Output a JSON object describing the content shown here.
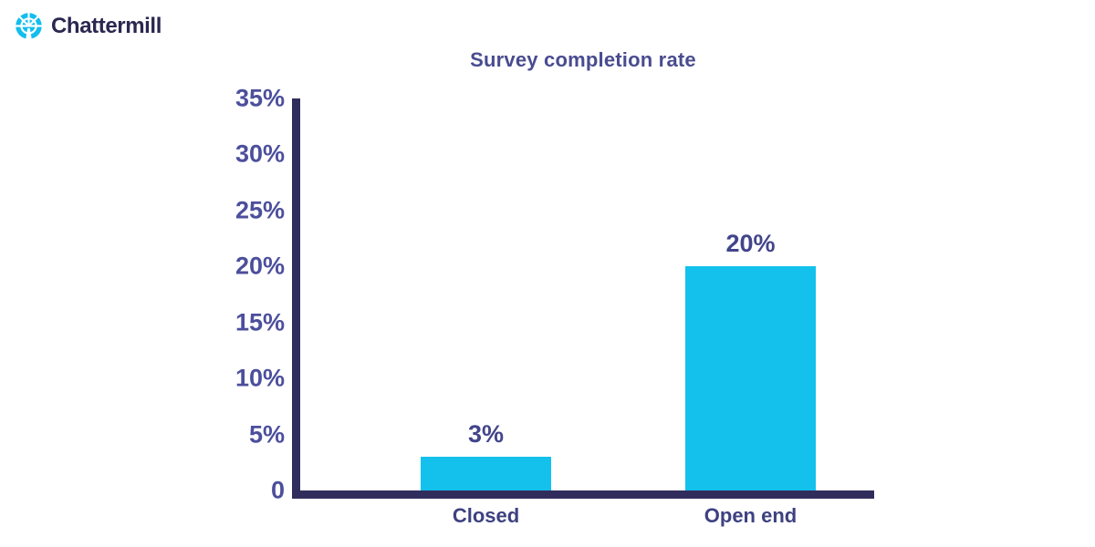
{
  "logo": {
    "text": "Chattermill",
    "icon": "chattermill-mill-wheel-icon",
    "colors": {
      "icon": "#12BEEE",
      "text": "#2A2750"
    }
  },
  "chart_data": {
    "type": "bar",
    "title": "Survey completion rate",
    "categories": [
      "Closed",
      "Open end"
    ],
    "values": [
      3,
      20
    ],
    "value_labels": [
      "3%",
      "20%"
    ],
    "ylim": [
      0,
      35
    ],
    "y_ticks": {
      "values": [
        35,
        30,
        25,
        20,
        15,
        10,
        5,
        0
      ],
      "labels": [
        "35%",
        "30%",
        "25%",
        "20%",
        "15%",
        "10%",
        "5%",
        "0"
      ]
    },
    "xlabel": "",
    "ylabel": "",
    "grid": false,
    "legend": "none",
    "colors": {
      "bar": "#13C1EC",
      "axis": "#302D5D",
      "title": "#494C8F",
      "tick_labels": "#4C4F9C",
      "value_labels": "#42458A",
      "category_labels": "#3E4180"
    }
  }
}
